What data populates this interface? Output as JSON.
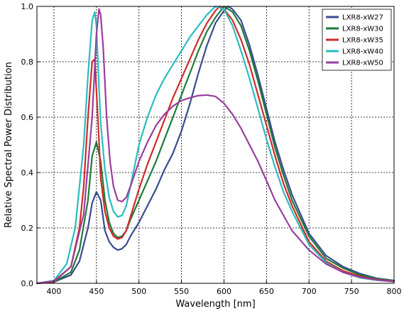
{
  "chart_data": {
    "type": "line",
    "title": "",
    "xlabel": "Wavelength [nm]",
    "ylabel": "Relative Spectral Power Distribution",
    "xlim": [
      380,
      800
    ],
    "ylim": [
      0.0,
      1.0
    ],
    "xticks": [
      400,
      450,
      500,
      550,
      600,
      650,
      700,
      750,
      800
    ],
    "yticks": [
      0.0,
      0.2,
      0.4,
      0.6,
      0.8,
      1.0
    ],
    "xtick_labels": [
      "400",
      "450",
      "500",
      "550",
      "600",
      "650",
      "700",
      "750",
      "800"
    ],
    "ytick_labels": [
      "0.0",
      "0.2",
      "0.4",
      "0.6",
      "0.8",
      "1.0"
    ],
    "grid": true,
    "legend_position": "top-right",
    "series": [
      {
        "name": "LXR8-xW27",
        "color": "#3a4b8f",
        "x": [
          380,
          400,
          420,
          430,
          440,
          445,
          450,
          455,
          460,
          465,
          470,
          475,
          480,
          485,
          490,
          500,
          510,
          520,
          530,
          540,
          550,
          560,
          570,
          580,
          590,
          600,
          605,
          610,
          620,
          630,
          640,
          650,
          660,
          670,
          680,
          700,
          720,
          740,
          760,
          780,
          800
        ],
        "y": [
          0.0,
          0.005,
          0.03,
          0.08,
          0.2,
          0.29,
          0.33,
          0.3,
          0.19,
          0.15,
          0.13,
          0.12,
          0.125,
          0.14,
          0.17,
          0.22,
          0.28,
          0.34,
          0.41,
          0.47,
          0.55,
          0.65,
          0.76,
          0.86,
          0.94,
          0.985,
          1.0,
          0.99,
          0.95,
          0.86,
          0.75,
          0.63,
          0.51,
          0.41,
          0.32,
          0.18,
          0.1,
          0.06,
          0.035,
          0.018,
          0.01
        ]
      },
      {
        "name": "LXR8-xW30",
        "color": "#1f7a3a",
        "x": [
          380,
          400,
          420,
          430,
          440,
          445,
          450,
          455,
          460,
          465,
          470,
          475,
          480,
          485,
          490,
          500,
          510,
          520,
          530,
          540,
          550,
          560,
          570,
          580,
          590,
          600,
          610,
          620,
          630,
          640,
          650,
          660,
          670,
          680,
          700,
          720,
          740,
          760,
          780,
          800
        ],
        "y": [
          0.0,
          0.005,
          0.04,
          0.12,
          0.3,
          0.46,
          0.51,
          0.44,
          0.3,
          0.22,
          0.18,
          0.165,
          0.17,
          0.19,
          0.23,
          0.3,
          0.37,
          0.44,
          0.52,
          0.6,
          0.68,
          0.76,
          0.84,
          0.91,
          0.96,
          1.0,
          0.98,
          0.93,
          0.84,
          0.73,
          0.61,
          0.49,
          0.39,
          0.3,
          0.17,
          0.09,
          0.055,
          0.03,
          0.016,
          0.008
        ]
      },
      {
        "name": "LXR8-xW35",
        "color": "#d02a2a",
        "x": [
          380,
          400,
          420,
          430,
          435,
          440,
          445,
          448,
          452,
          455,
          460,
          465,
          470,
          475,
          480,
          485,
          490,
          500,
          510,
          520,
          530,
          540,
          550,
          560,
          570,
          580,
          590,
          595,
          600,
          610,
          620,
          630,
          640,
          650,
          660,
          670,
          680,
          700,
          720,
          740,
          760,
          780,
          800
        ],
        "y": [
          0.0,
          0.006,
          0.06,
          0.2,
          0.35,
          0.6,
          0.8,
          0.81,
          0.58,
          0.38,
          0.26,
          0.2,
          0.17,
          0.16,
          0.165,
          0.19,
          0.24,
          0.34,
          0.43,
          0.51,
          0.59,
          0.67,
          0.74,
          0.81,
          0.88,
          0.94,
          0.985,
          1.0,
          0.99,
          0.95,
          0.88,
          0.79,
          0.68,
          0.57,
          0.46,
          0.36,
          0.28,
          0.15,
          0.08,
          0.045,
          0.025,
          0.013,
          0.007
        ]
      },
      {
        "name": "LXR8-xW40",
        "color": "#2bbcc0",
        "x": [
          380,
          400,
          415,
          425,
          435,
          440,
          445,
          448,
          450,
          452,
          455,
          460,
          465,
          470,
          475,
          480,
          485,
          490,
          500,
          510,
          520,
          530,
          540,
          550,
          560,
          570,
          580,
          590,
          600,
          610,
          620,
          630,
          640,
          650,
          660,
          670,
          680,
          700,
          720,
          740,
          760,
          780,
          800
        ],
        "y": [
          0.0,
          0.01,
          0.07,
          0.2,
          0.5,
          0.75,
          0.95,
          0.98,
          0.93,
          0.78,
          0.58,
          0.41,
          0.31,
          0.26,
          0.24,
          0.245,
          0.28,
          0.35,
          0.5,
          0.6,
          0.68,
          0.74,
          0.79,
          0.84,
          0.89,
          0.93,
          0.97,
          1.0,
          0.99,
          0.93,
          0.84,
          0.74,
          0.63,
          0.52,
          0.42,
          0.33,
          0.26,
          0.14,
          0.075,
          0.04,
          0.02,
          0.011,
          0.006
        ]
      },
      {
        "name": "LXR8-xW50",
        "color": "#9a3d9c",
        "x": [
          380,
          400,
          420,
          435,
          445,
          450,
          453,
          455,
          458,
          462,
          466,
          470,
          475,
          480,
          485,
          490,
          500,
          510,
          520,
          530,
          540,
          550,
          560,
          570,
          580,
          590,
          600,
          610,
          620,
          630,
          640,
          650,
          660,
          680,
          700,
          720,
          740,
          760,
          780,
          800
        ],
        "y": [
          0.0,
          0.008,
          0.06,
          0.25,
          0.6,
          0.9,
          0.99,
          0.97,
          0.85,
          0.6,
          0.44,
          0.35,
          0.3,
          0.295,
          0.31,
          0.35,
          0.44,
          0.51,
          0.57,
          0.61,
          0.64,
          0.66,
          0.67,
          0.678,
          0.68,
          0.675,
          0.65,
          0.61,
          0.56,
          0.5,
          0.44,
          0.37,
          0.3,
          0.19,
          0.12,
          0.07,
          0.04,
          0.022,
          0.012,
          0.006
        ]
      }
    ]
  }
}
